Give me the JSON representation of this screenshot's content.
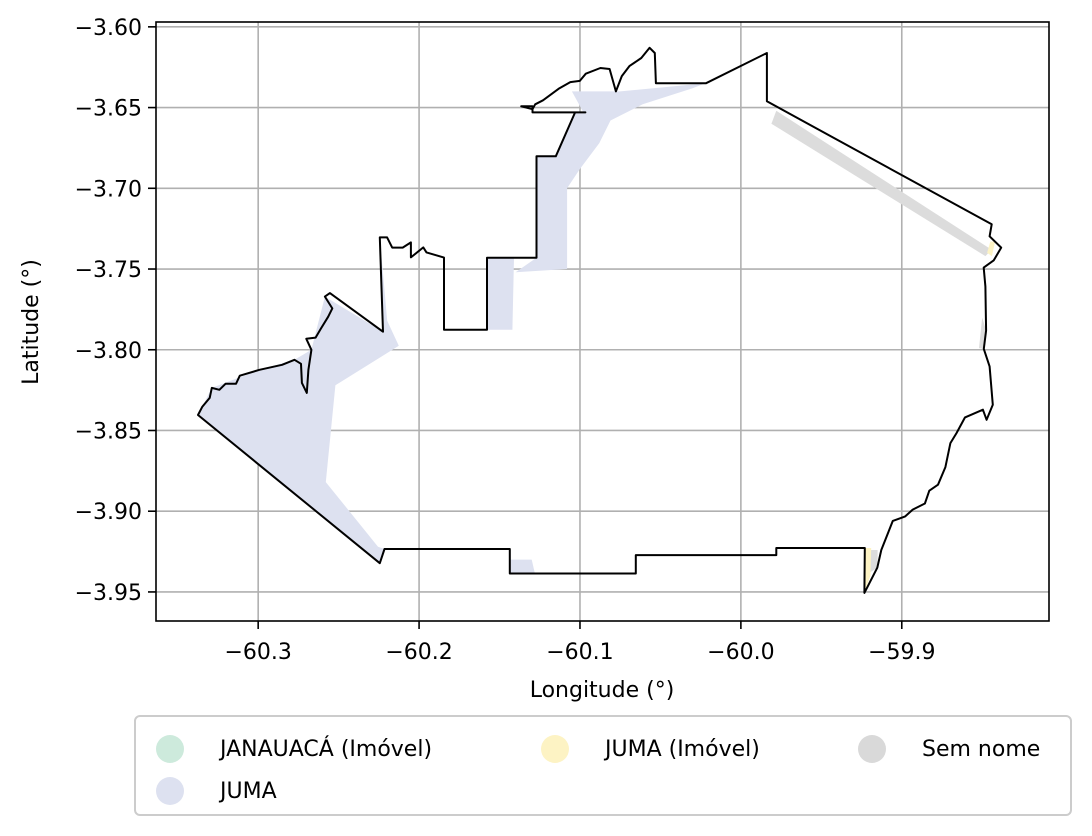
{
  "chart_data": {
    "type": "map",
    "xlabel": "Longitude (°)",
    "ylabel": "Latitude (°)",
    "xlim": [
      -60.3635,
      -59.8085
    ],
    "ylim": [
      -3.968,
      -3.597
    ],
    "xticks": [
      -60.3,
      -60.2,
      -60.1,
      -60.0,
      -59.9
    ],
    "xtick_labels": [
      "−60.3",
      "−60.2",
      "−60.1",
      "−60.0",
      "−59.9"
    ],
    "yticks": [
      -3.6,
      -3.65,
      -3.7,
      -3.75,
      -3.8,
      -3.85,
      -3.9,
      -3.95
    ],
    "ytick_labels": [
      "−3.60",
      "−3.65",
      "−3.70",
      "−3.75",
      "−3.80",
      "−3.85",
      "−3.90",
      "−3.95"
    ],
    "grid": true,
    "legend_placement": "below",
    "legend": [
      {
        "label": "JANAUACÁ (Imóvel)",
        "color": "#cdeadc"
      },
      {
        "label": "JUMA (Imóvel)",
        "color": "#fdf3c4"
      },
      {
        "label": "Sem nome",
        "color": "#d9d9d9"
      },
      {
        "label": "JUMA",
        "color": "#dde1f0"
      }
    ],
    "outline": [
      [
        -60.3374,
        -3.8404
      ],
      [
        -60.3348,
        -3.8354
      ],
      [
        -60.3301,
        -3.8298
      ],
      [
        -60.3288,
        -3.8236
      ],
      [
        -60.3241,
        -3.8248
      ],
      [
        -60.3203,
        -3.8211
      ],
      [
        -60.3138,
        -3.8211
      ],
      [
        -60.3114,
        -3.8161
      ],
      [
        -60.2992,
        -3.8124
      ],
      [
        -60.2851,
        -3.8093
      ],
      [
        -60.2774,
        -3.8062
      ],
      [
        -60.2734,
        -3.8087
      ],
      [
        -60.2728,
        -3.8205
      ],
      [
        -60.2698,
        -3.8267
      ],
      [
        -60.2688,
        -3.8124
      ],
      [
        -60.2669,
        -3.8
      ],
      [
        -60.2701,
        -3.7932
      ],
      [
        -60.2643,
        -3.7925
      ],
      [
        -60.2611,
        -3.787
      ],
      [
        -60.2565,
        -3.7795
      ],
      [
        -60.2539,
        -3.7744
      ],
      [
        -60.2585,
        -3.7671
      ],
      [
        -60.2554,
        -3.7649
      ],
      [
        -60.2224,
        -3.7888
      ],
      [
        -60.2244,
        -3.7304
      ],
      [
        -60.2199,
        -3.7304
      ],
      [
        -60.2167,
        -3.7367
      ],
      [
        -60.2102,
        -3.7367
      ],
      [
        -60.2051,
        -3.7335
      ],
      [
        -60.2051,
        -3.7428
      ],
      [
        -60.1974,
        -3.7366
      ],
      [
        -60.1954,
        -3.7397
      ],
      [
        -60.1845,
        -3.7429
      ],
      [
        -60.1845,
        -3.7876
      ],
      [
        -60.1578,
        -3.7876
      ],
      [
        -60.1578,
        -3.743
      ],
      [
        -60.127,
        -3.743
      ],
      [
        -60.127,
        -3.6802
      ],
      [
        -60.115,
        -3.6802
      ],
      [
        -60.103,
        -3.653
      ],
      [
        -60.0979,
        -3.653
      ],
      [
        -60.0966,
        -3.653
      ],
      [
        -60.1295,
        -3.653
      ],
      [
        -60.1295,
        -3.6492
      ],
      [
        -60.1365,
        -3.6492
      ],
      [
        -60.1295,
        -3.651
      ],
      [
        -60.1278,
        -3.648
      ],
      [
        -60.123,
        -3.6455
      ],
      [
        -60.1133,
        -3.6384
      ],
      [
        -60.106,
        -3.6342
      ],
      [
        -60.1001,
        -3.6335
      ],
      [
        -60.0964,
        -3.629
      ],
      [
        -60.0873,
        -3.6255
      ],
      [
        -60.0816,
        -3.6261
      ],
      [
        -60.0777,
        -3.64
      ],
      [
        -60.074,
        -3.6305
      ],
      [
        -60.0693,
        -3.6243
      ],
      [
        -60.0619,
        -3.6193
      ],
      [
        -60.0567,
        -3.613
      ],
      [
        -60.0535,
        -3.6162
      ],
      [
        -60.0528,
        -3.6349
      ],
      [
        -60.0216,
        -3.6349
      ],
      [
        -59.9838,
        -3.6162
      ],
      [
        -59.9838,
        -3.6461
      ],
      [
        -59.8441,
        -3.7223
      ],
      [
        -59.8454,
        -3.7297
      ],
      [
        -59.8382,
        -3.7367
      ],
      [
        -59.8428,
        -3.7446
      ],
      [
        -59.8491,
        -3.7491
      ],
      [
        -59.848,
        -3.7608
      ],
      [
        -59.8476,
        -3.7881
      ],
      [
        -59.849,
        -3.7995
      ],
      [
        -59.8454,
        -3.8103
      ],
      [
        -59.8434,
        -3.8341
      ],
      [
        -59.8473,
        -3.8434
      ],
      [
        -59.8496,
        -3.8371
      ],
      [
        -59.8607,
        -3.8419
      ],
      [
        -59.866,
        -3.8516
      ],
      [
        -59.8698,
        -3.8578
      ],
      [
        -59.8729,
        -3.8727
      ],
      [
        -59.8775,
        -3.8836
      ],
      [
        -59.8829,
        -3.8873
      ],
      [
        -59.8856,
        -3.8952
      ],
      [
        -59.8932,
        -3.899
      ],
      [
        -59.8979,
        -3.9032
      ],
      [
        -59.9056,
        -3.906
      ],
      [
        -59.9127,
        -3.924
      ],
      [
        -59.9152,
        -3.935
      ],
      [
        -59.9232,
        -3.9506
      ],
      [
        -59.923,
        -3.9228
      ],
      [
        -59.978,
        -3.9228
      ],
      [
        -59.978,
        -3.9272
      ],
      [
        -60.0653,
        -3.9272
      ],
      [
        -60.0653,
        -3.9386
      ],
      [
        -60.1436,
        -3.9386
      ],
      [
        -60.1436,
        -3.9234
      ],
      [
        -60.2215,
        -3.9234
      ],
      [
        -60.2244,
        -3.9322
      ],
      [
        -60.3374,
        -3.8404
      ]
    ],
    "juma_region": [
      [
        -60.3374,
        -3.8404
      ],
      [
        -60.3348,
        -3.8354
      ],
      [
        -60.3288,
        -3.8236
      ],
      [
        -60.2992,
        -3.8124
      ],
      [
        -60.2774,
        -3.8062
      ],
      [
        -60.2669,
        -3.8
      ],
      [
        -60.2585,
        -3.7671
      ],
      [
        -60.2224,
        -3.7888
      ],
      [
        -60.2244,
        -3.7304
      ],
      [
        -60.2198,
        -3.782
      ],
      [
        -60.2126,
        -3.7975
      ],
      [
        -60.252,
        -3.822
      ],
      [
        -60.258,
        -3.882
      ],
      [
        -60.2255,
        -3.922
      ],
      [
        -60.2215,
        -3.9234
      ],
      [
        -60.2244,
        -3.9322
      ],
      [
        -60.3374,
        -3.8404
      ]
    ],
    "juma_region_2": [
      [
        -60.1578,
        -3.743
      ],
      [
        -60.1578,
        -3.7876
      ],
      [
        -60.142,
        -3.7876
      ],
      [
        -60.141,
        -3.743
      ],
      [
        -60.1578,
        -3.743
      ]
    ],
    "juma_region_3": [
      [
        -60.127,
        -3.743
      ],
      [
        -60.127,
        -3.6802
      ],
      [
        -60.115,
        -3.6802
      ],
      [
        -60.103,
        -3.653
      ],
      [
        -60.0979,
        -3.653
      ],
      [
        -60.105,
        -3.64
      ],
      [
        -60.075,
        -3.64
      ],
      [
        -60.022,
        -3.6349
      ],
      [
        -60.03,
        -3.638
      ],
      [
        -60.061,
        -3.648
      ],
      [
        -60.081,
        -3.658
      ],
      [
        -60.088,
        -3.672
      ],
      [
        -60.1,
        -3.688
      ],
      [
        -60.108,
        -3.7
      ],
      [
        -60.108,
        -3.75
      ],
      [
        -60.14,
        -3.752
      ],
      [
        -60.127,
        -3.743
      ]
    ],
    "juma_region_4": [
      [
        -60.1436,
        -3.9386
      ],
      [
        -60.1436,
        -3.93
      ],
      [
        -60.13,
        -3.93
      ],
      [
        -60.128,
        -3.9386
      ],
      [
        -60.1436,
        -3.9386
      ]
    ],
    "semnome_region": [
      [
        -59.981,
        -3.66
      ],
      [
        -59.978,
        -3.652
      ],
      [
        -59.8441,
        -3.738
      ],
      [
        -59.848,
        -3.742
      ],
      [
        -59.981,
        -3.66
      ]
    ],
    "semnome_region_2": [
      [
        -59.8476,
        -3.7881
      ],
      [
        -59.849,
        -3.7995
      ],
      [
        -59.852,
        -3.799
      ],
      [
        -59.85,
        -3.78
      ],
      [
        -59.8476,
        -3.7881
      ]
    ],
    "semnome_region_3": [
      [
        -59.92,
        -3.924
      ],
      [
        -59.915,
        -3.924
      ],
      [
        -59.915,
        -3.935
      ],
      [
        -59.92,
        -3.938
      ],
      [
        -59.92,
        -3.924
      ]
    ],
    "jumaimovel_region": [
      [
        -59.923,
        -3.9228
      ],
      [
        -59.919,
        -3.9228
      ],
      [
        -59.9195,
        -3.94
      ],
      [
        -59.9232,
        -3.9506
      ],
      [
        -59.923,
        -3.9228
      ]
    ],
    "jumaimovel_region_2": [
      [
        -59.845,
        -3.733
      ],
      [
        -59.842,
        -3.733
      ],
      [
        -59.844,
        -3.742
      ],
      [
        -59.847,
        -3.74
      ],
      [
        -59.845,
        -3.733
      ]
    ]
  }
}
